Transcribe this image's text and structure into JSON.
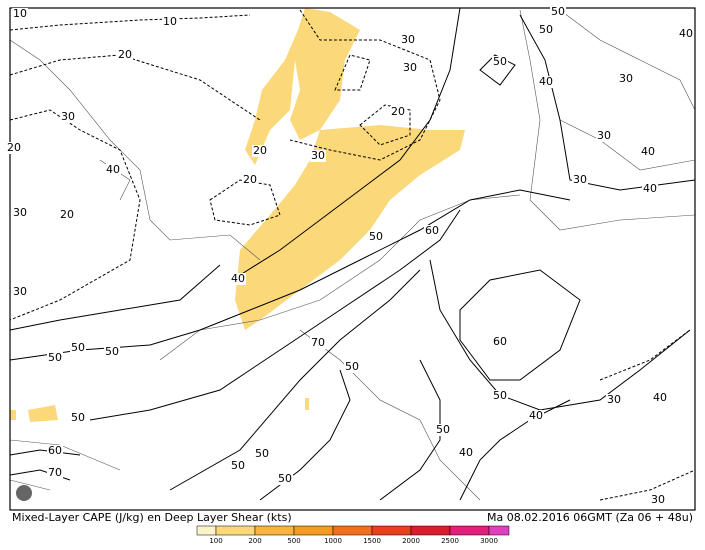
{
  "map": {
    "title": "Mixed-Layer CAPE (J/kg) en Deep Layer Shear (kts)",
    "valid_time": "Ma 08.02.2016 06GMT (Za 06 + 48u)",
    "contour_labels": [
      "10",
      "10",
      "20",
      "30",
      "20",
      "40",
      "30",
      "20",
      "30",
      "50",
      "50",
      "50",
      "50",
      "60",
      "70",
      "50",
      "50",
      "50",
      "70",
      "50",
      "50",
      "40",
      "40",
      "50",
      "60",
      "30",
      "40",
      "30",
      "60",
      "50",
      "40",
      "30",
      "20",
      "20",
      "20",
      "30",
      "30",
      "50",
      "40",
      "50",
      "50",
      "30",
      "30",
      "40",
      "30",
      "40",
      "40"
    ],
    "legend": {
      "ticks": [
        "100",
        "200",
        "500",
        "1000",
        "1500",
        "2000",
        "2500",
        "3000"
      ],
      "colors": [
        "#fdf3c8",
        "#fbd879",
        "#f8b340",
        "#f59a22",
        "#f07020",
        "#e8401c",
        "#d61e2c",
        "#e0207a",
        "#e040c0"
      ]
    }
  }
}
